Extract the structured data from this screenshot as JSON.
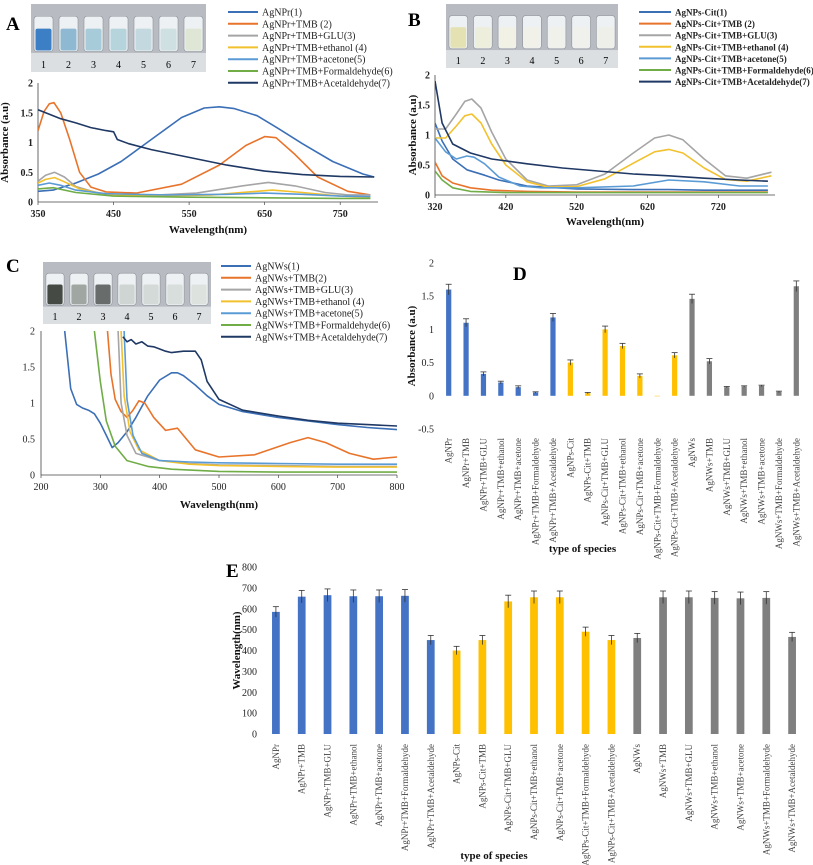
{
  "chart_data": [
    {
      "id": "A",
      "type": "line",
      "panel_letter": "A",
      "xlabel": "Wavelength(nm)",
      "ylabel": "Absorbance (a.u)",
      "xlim": [
        350,
        800
      ],
      "ylim": [
        0,
        2
      ],
      "xticks": [
        "350",
        "450",
        "550",
        "650",
        "750"
      ],
      "yticks": [
        "0",
        "0.5",
        "1",
        "1.5",
        "2"
      ],
      "vial_labels": [
        "1",
        "2",
        "3",
        "4",
        "5",
        "6",
        "7"
      ],
      "vial_colors": [
        "#3d7fc4",
        "#8fb9d2",
        "#a8cbd9",
        "#b6d4dc",
        "#c3d9df",
        "#cfe0e2",
        "#dfe6d6"
      ],
      "series": [
        {
          "name": "AgNPr(1)",
          "color": "#3b6fb6",
          "x": [
            350,
            370,
            400,
            430,
            460,
            500,
            540,
            570,
            590,
            610,
            640,
            670,
            700,
            740,
            780,
            795
          ],
          "y": [
            0.18,
            0.2,
            0.32,
            0.47,
            0.68,
            1.05,
            1.42,
            1.58,
            1.6,
            1.57,
            1.45,
            1.22,
            0.98,
            0.68,
            0.47,
            0.42
          ]
        },
        {
          "name": "AgNPr+TMB (2)",
          "color": "#e8742b",
          "x": [
            350,
            358,
            365,
            371,
            380,
            392,
            405,
            420,
            440,
            480,
            540,
            590,
            625,
            650,
            665,
            690,
            720,
            760,
            790
          ],
          "y": [
            1.2,
            1.52,
            1.65,
            1.67,
            1.5,
            1.05,
            0.5,
            0.25,
            0.17,
            0.15,
            0.3,
            0.62,
            0.95,
            1.1,
            1.08,
            0.8,
            0.42,
            0.18,
            0.12
          ]
        },
        {
          "name": "AgNPr+TMB+GLU(3)",
          "color": "#a5a5a5",
          "x": [
            350,
            360,
            372,
            385,
            400,
            430,
            480,
            560,
            620,
            655,
            690,
            730,
            760,
            790
          ],
          "y": [
            0.35,
            0.45,
            0.5,
            0.42,
            0.26,
            0.15,
            0.1,
            0.15,
            0.27,
            0.33,
            0.27,
            0.16,
            0.12,
            0.12
          ]
        },
        {
          "name": "AgNPr+TMB+ethanol (4)",
          "color": "#f2c12e",
          "x": [
            350,
            360,
            372,
            385,
            405,
            440,
            500,
            580,
            640,
            660,
            700,
            750,
            790
          ],
          "y": [
            0.32,
            0.38,
            0.41,
            0.34,
            0.22,
            0.13,
            0.1,
            0.12,
            0.18,
            0.2,
            0.16,
            0.1,
            0.08
          ]
        },
        {
          "name": "AgNPr+TMB+acetone(5)",
          "color": "#5b9bd5",
          "x": [
            350,
            365,
            380,
            400,
            440,
            520,
            600,
            650,
            700,
            750,
            790
          ],
          "y": [
            0.28,
            0.32,
            0.28,
            0.2,
            0.14,
            0.12,
            0.13,
            0.15,
            0.13,
            0.1,
            0.09
          ]
        },
        {
          "name": "AgNPr+TMB+Formaldehyde(6)",
          "color": "#70ad47",
          "x": [
            350,
            370,
            400,
            450,
            550,
            650,
            750,
            790
          ],
          "y": [
            0.22,
            0.24,
            0.16,
            0.1,
            0.08,
            0.07,
            0.06,
            0.06
          ]
        },
        {
          "name": "AgNPr+TMB+Acetaldehyde(7)",
          "color": "#1f3864",
          "x": [
            350,
            360,
            380,
            400,
            420,
            440,
            450,
            455,
            470,
            500,
            550,
            600,
            650,
            700,
            750,
            795
          ],
          "y": [
            1.55,
            1.5,
            1.4,
            1.33,
            1.25,
            1.2,
            1.18,
            1.05,
            0.98,
            0.88,
            0.75,
            0.62,
            0.52,
            0.46,
            0.43,
            0.42
          ]
        }
      ]
    },
    {
      "id": "B",
      "type": "line",
      "panel_letter": "B",
      "xlabel": "Wavelength(nm)",
      "ylabel": "Absorbance (a.u)",
      "xlim": [
        320,
        800
      ],
      "ylim": [
        0,
        2
      ],
      "xticks": [
        "320",
        "420",
        "520",
        "620",
        "720"
      ],
      "yticks": [
        "0",
        "0.5",
        "1",
        "1.5",
        "2"
      ],
      "vial_labels": [
        "1",
        "2",
        "3",
        "4",
        "5",
        "6",
        "7"
      ],
      "vial_colors": [
        "#e4e2b2",
        "#eeeedd",
        "#f1f1e6",
        "#f1f1e9",
        "#f1f1eb",
        "#f0f1ec",
        "#eeefe9"
      ],
      "series": [
        {
          "name": "AgNPs-Cit(1)",
          "color": "#3b6fb6",
          "x": [
            320,
            330,
            345,
            365,
            390,
            410,
            450,
            520,
            600,
            650,
            700,
            750,
            790
          ],
          "y": [
            1.2,
            0.9,
            0.6,
            0.42,
            0.33,
            0.25,
            0.15,
            0.1,
            0.09,
            0.09,
            0.08,
            0.08,
            0.08
          ]
        },
        {
          "name": "AgNPs-Cit+TMB (2)",
          "color": "#e8742b",
          "x": [
            320,
            330,
            345,
            370,
            400,
            450,
            520,
            600,
            700,
            790
          ],
          "y": [
            0.55,
            0.32,
            0.2,
            0.12,
            0.08,
            0.06,
            0.05,
            0.05,
            0.05,
            0.05
          ]
        },
        {
          "name": "AgNPs-Cit+TMB+GLU(3)",
          "color": "#a5a5a5",
          "x": [
            320,
            335,
            350,
            362,
            372,
            385,
            400,
            420,
            450,
            480,
            520,
            560,
            600,
            630,
            650,
            670,
            700,
            730,
            760,
            795
          ],
          "y": [
            1.1,
            1.1,
            1.35,
            1.56,
            1.6,
            1.45,
            1.05,
            0.6,
            0.25,
            0.15,
            0.17,
            0.35,
            0.7,
            0.95,
            1.0,
            0.92,
            0.6,
            0.32,
            0.28,
            0.38
          ]
        },
        {
          "name": "AgNPs-Cit+TMB+ethanol (4)",
          "color": "#f2c12e",
          "x": [
            320,
            335,
            350,
            362,
            372,
            385,
            400,
            420,
            450,
            480,
            520,
            560,
            600,
            630,
            650,
            670,
            700,
            730,
            760,
            795
          ],
          "y": [
            0.95,
            0.95,
            1.15,
            1.32,
            1.35,
            1.2,
            0.85,
            0.5,
            0.22,
            0.13,
            0.14,
            0.27,
            0.53,
            0.72,
            0.76,
            0.7,
            0.45,
            0.26,
            0.23,
            0.32
          ]
        },
        {
          "name": "AgNPs-Cit+TMB+acetone(5)",
          "color": "#5b9bd5",
          "x": [
            320,
            335,
            350,
            365,
            375,
            390,
            410,
            440,
            470,
            520,
            600,
            650,
            700,
            750,
            790
          ],
          "y": [
            0.95,
            0.72,
            0.6,
            0.65,
            0.63,
            0.52,
            0.3,
            0.15,
            0.12,
            0.12,
            0.15,
            0.25,
            0.22,
            0.15,
            0.15
          ]
        },
        {
          "name": "AgNPs-Cit+TMB+Formaldehyde(6)",
          "color": "#70ad47",
          "x": [
            320,
            330,
            345,
            370,
            420,
            500,
            600,
            700,
            790
          ],
          "y": [
            0.4,
            0.25,
            0.12,
            0.06,
            0.04,
            0.04,
            0.04,
            0.04,
            0.04
          ]
        },
        {
          "name": "AgNPs-Cit+TMB+Acetaldehyde(7)",
          "color": "#1f3864",
          "x": [
            320,
            330,
            345,
            370,
            400,
            450,
            500,
            550,
            600,
            650,
            700,
            750,
            790
          ],
          "y": [
            1.9,
            1.2,
            0.85,
            0.7,
            0.6,
            0.52,
            0.45,
            0.4,
            0.35,
            0.32,
            0.28,
            0.25,
            0.23
          ]
        }
      ]
    },
    {
      "id": "C",
      "type": "line",
      "panel_letter": "C",
      "xlabel": "Wavelength(nm)",
      "ylabel": "",
      "xlim": [
        200,
        800
      ],
      "ylim": [
        0,
        2
      ],
      "xticks": [
        "200",
        "300",
        "400",
        "500",
        "600",
        "700",
        "800"
      ],
      "yticks": [
        "0",
        "0.5",
        "1",
        "1.5",
        "2"
      ],
      "vial_labels": [
        "1",
        "2",
        "3",
        "4",
        "5",
        "6",
        "7"
      ],
      "vial_colors": [
        "#454a45",
        "#a0a6a2",
        "#686d6c",
        "#cfd5d2",
        "#d4dad7",
        "#d8dedb",
        "#dde2df"
      ],
      "series": [
        {
          "name": "AgNWs(1)",
          "color": "#3b6fb6",
          "x": [
            240,
            245,
            250,
            260,
            270,
            280,
            290,
            300,
            310,
            320,
            330,
            345,
            360,
            380,
            400,
            420,
            430,
            440,
            460,
            480,
            500,
            540,
            600,
            650,
            700,
            750,
            800
          ],
          "y": [
            2.0,
            1.6,
            1.2,
            0.98,
            0.93,
            0.9,
            0.85,
            0.72,
            0.55,
            0.38,
            0.45,
            0.6,
            0.8,
            1.1,
            1.32,
            1.42,
            1.42,
            1.38,
            1.25,
            1.1,
            0.98,
            0.88,
            0.8,
            0.75,
            0.7,
            0.66,
            0.63
          ]
        },
        {
          "name": "AgNWs+TMB(2)",
          "color": "#e8742b",
          "x": [
            312,
            318,
            325,
            335,
            345,
            355,
            365,
            375,
            390,
            410,
            430,
            460,
            500,
            560,
            620,
            650,
            680,
            720,
            760,
            800
          ],
          "y": [
            2.0,
            1.4,
            1.05,
            0.88,
            0.8,
            0.9,
            1.03,
            1.0,
            0.8,
            0.62,
            0.65,
            0.35,
            0.25,
            0.28,
            0.45,
            0.52,
            0.45,
            0.3,
            0.22,
            0.25
          ]
        },
        {
          "name": "AgNWs+TMB+GLU(3)",
          "color": "#a5a5a5",
          "x": [
            330,
            335,
            345,
            360,
            400,
            450,
            500,
            600,
            700,
            800
          ],
          "y": [
            2.0,
            1.0,
            0.55,
            0.3,
            0.2,
            0.16,
            0.14,
            0.13,
            0.12,
            0.12
          ]
        },
        {
          "name": "AgNWs+TMB+ethanol (4)",
          "color": "#f2c12e",
          "x": [
            335,
            340,
            350,
            365,
            400,
            450,
            500,
            600,
            700,
            800
          ],
          "y": [
            2.0,
            1.1,
            0.6,
            0.35,
            0.2,
            0.15,
            0.13,
            0.12,
            0.11,
            0.11
          ]
        },
        {
          "name": "AgNWs+TMB+acetone(5)",
          "color": "#5b9bd5",
          "x": [
            340,
            345,
            355,
            370,
            400,
            450,
            500,
            600,
            700,
            800
          ],
          "y": [
            2.0,
            1.05,
            0.55,
            0.3,
            0.2,
            0.18,
            0.17,
            0.16,
            0.15,
            0.15
          ]
        },
        {
          "name": "AgNWs+TMB+Formaldehyde(6)",
          "color": "#70ad47",
          "x": [
            290,
            300,
            310,
            325,
            345,
            380,
            420,
            500,
            600,
            700,
            800
          ],
          "y": [
            2.0,
            1.3,
            0.75,
            0.4,
            0.2,
            0.12,
            0.08,
            0.05,
            0.04,
            0.04,
            0.04
          ]
        },
        {
          "name": "AgNWs+TMB+Acetaldehyde(7)",
          "color": "#1f3864",
          "x": [
            338,
            345,
            352,
            360,
            370,
            380,
            390,
            400,
            410,
            420,
            440,
            460,
            470,
            480,
            500,
            540,
            600,
            650,
            700,
            750,
            800
          ],
          "y": [
            1.92,
            1.85,
            1.88,
            1.82,
            1.85,
            1.79,
            1.78,
            1.75,
            1.72,
            1.7,
            1.72,
            1.72,
            1.6,
            1.3,
            1.05,
            0.9,
            0.82,
            0.76,
            0.72,
            0.7,
            0.68
          ]
        }
      ]
    },
    {
      "id": "D",
      "type": "bar",
      "panel_letter": "D",
      "xlabel": "type of species",
      "ylabel": "Absorbance (a.u)",
      "ylim": [
        -0.5,
        2
      ],
      "yticks": [
        "-0.5",
        "0",
        "0.5",
        "1",
        "1.5",
        "2"
      ],
      "categories": [
        "AgNPr",
        "AgNPr+TMB",
        "AgNPr+TMB+GLU",
        "AgNPr+TMB+ethanol",
        "AgNPr+TMB+acetone",
        "AgNPr+TMB+Formaldehyde",
        "AgNPr+TMB+Acetaldehyde",
        "AgNPs-Cit",
        "AgNPs-Cit+TMB",
        "AgNPs-Cit+TMB+GLU",
        "AgNPs-Cit+TMB+ethanol",
        "AgNPs-Cit+TMB+acetone",
        "AgNPs-Cit+TMB+Formaldehyde",
        "AgNPs-Cit+TMB+Acetaldehyde",
        "AgNWs",
        "AgNWs+TMB",
        "AgNWs+TMB+GLU",
        "AgNWs+TMB+ethanol",
        "AgNWs+TMB+acetone",
        "AgNWs+TMB+Formaldehyde",
        "AgNWs+TMB+Acetaldehyde"
      ],
      "values": [
        1.6,
        1.1,
        0.33,
        0.2,
        0.13,
        0.05,
        1.18,
        0.5,
        0.04,
        1.0,
        0.75,
        0.3,
        0.0,
        0.61,
        1.46,
        0.52,
        0.13,
        0.14,
        0.15,
        0.06,
        1.65
      ],
      "errors": [
        0.08,
        0.06,
        0.03,
        0.02,
        0.02,
        0.01,
        0.06,
        0.04,
        0.01,
        0.05,
        0.04,
        0.03,
        0.0,
        0.04,
        0.07,
        0.04,
        0.01,
        0.01,
        0.01,
        0.01,
        0.08
      ],
      "group_colors": [
        "#4472c4",
        "#ffc000",
        "#7f7f7f"
      ],
      "group_sizes": [
        7,
        7,
        7
      ]
    },
    {
      "id": "E",
      "type": "bar",
      "panel_letter": "E",
      "xlabel": "type of species",
      "ylabel": "Wavelength(nm)",
      "ylim": [
        0,
        800
      ],
      "yticks": [
        "0",
        "100",
        "200",
        "300",
        "400",
        "500",
        "600",
        "700",
        "800"
      ],
      "categories": [
        "AgNPr",
        "AgNPr+TMB",
        "AgNPr+TMB+GLU",
        "AgNPr+TMB+ethanol",
        "AgNPr+TMB+acetone",
        "AgNPr+TMB+Formaldehyde",
        "AgNPr+TMB+Acetaldehyde",
        "AgNPs-Cit",
        "AgNPs-Cit+TMB",
        "AgNPs-Cit+TMB+GLU",
        "AgNPs-Cit+TMB+ethanol",
        "AgNPs-Cit+TMB+acetone",
        "AgNPs-Cit+TMB+Formaldehyde",
        "AgNPs-Cit+TMB+Acetaldehyde",
        "AgNWs",
        "AgNWs+TMB",
        "AgNWs+TMB+GLU",
        "AgNWs+TMB+ethanol",
        "AgNWs+TMB+acetone",
        "AgNWs+TMB+Formaldehyde",
        "AgNWs+TMB+Acetaldehyde"
      ],
      "values": [
        585,
        658,
        665,
        660,
        660,
        662,
        450,
        400,
        450,
        635,
        655,
        655,
        490,
        450,
        460,
        655,
        655,
        652,
        650,
        652,
        465
      ],
      "errors": [
        25,
        30,
        30,
        30,
        30,
        30,
        22,
        20,
        22,
        30,
        30,
        30,
        22,
        22,
        22,
        30,
        30,
        30,
        30,
        30,
        22
      ],
      "group_colors": [
        "#4472c4",
        "#ffc000",
        "#7f7f7f"
      ],
      "group_sizes": [
        7,
        7,
        7
      ]
    }
  ]
}
